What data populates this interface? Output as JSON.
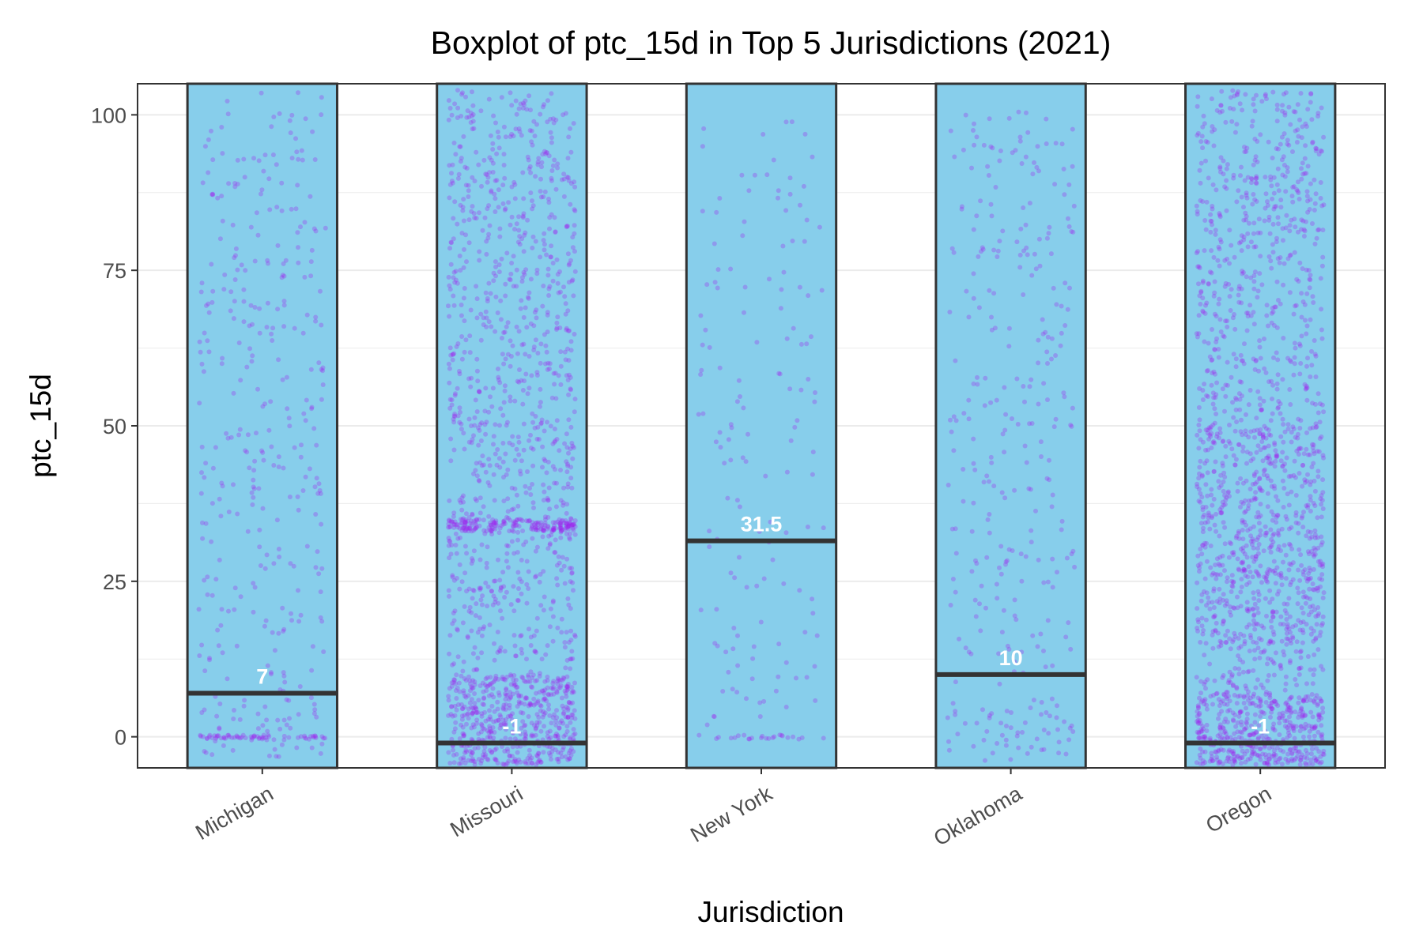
{
  "chart_data": {
    "type": "boxplot",
    "title": "Boxplot of ptc_15d in Top 5 Jurisdictions (2021)",
    "xlabel": "Jurisdiction",
    "ylabel": "ptc_15d",
    "categories": [
      "Michigan",
      "Missouri",
      "New York",
      "Oklahoma",
      "Oregon"
    ],
    "medians": [
      7,
      -1,
      31.5,
      10,
      -1
    ],
    "median_labels": [
      "7",
      "-1",
      "31.5",
      "10",
      "-1"
    ],
    "yticks": [
      0,
      25,
      50,
      75,
      100
    ],
    "ytick_labels": [
      "0",
      "25",
      "50",
      "75",
      "100"
    ],
    "ylim": [
      -5,
      105
    ],
    "grid": true,
    "points": [
      {
        "category": "Michigan",
        "count": 420
      },
      {
        "category": "Missouri",
        "count": 1700
      },
      {
        "category": "New York",
        "count": 170
      },
      {
        "category": "Oklahoma",
        "count": 320
      },
      {
        "category": "Oregon",
        "count": 1900
      }
    ],
    "colors": {
      "box_fill": "#87ceeb",
      "box_stroke": "#333333",
      "median": "#333333",
      "points": "#a020f0",
      "grid": "#ebebeb",
      "panel_border": "#333333"
    }
  }
}
